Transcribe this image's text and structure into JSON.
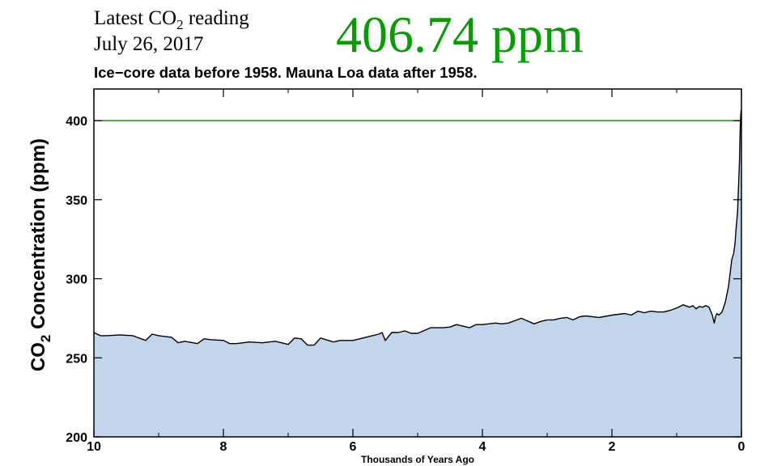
{
  "header": {
    "latest_prefix": "Latest CO",
    "latest_sub": "2",
    "latest_suffix": " reading",
    "date": "July 26, 2017",
    "reading": "406.74 ppm",
    "subtitle": "Ice−core data before 1958. Mauna Loa data after 1958."
  },
  "colors": {
    "reading": "#0a9a0a",
    "fill": "#c3d5ea",
    "line": "#000000",
    "reference_line": "#0a9a0a"
  },
  "chart_data": {
    "type": "area",
    "title": "",
    "xlabel": "Thousands of Years Ago",
    "ylabel_prefix": "CO",
    "ylabel_sub": "2",
    "ylabel_suffix": " Concentration (ppm)",
    "xlim": [
      10,
      0
    ],
    "ylim": [
      200,
      420
    ],
    "x_ticks": [
      10,
      8,
      6,
      4,
      2,
      0
    ],
    "y_ticks": [
      200,
      250,
      300,
      350,
      400
    ],
    "reference_line": 400,
    "grid": false,
    "series": [
      {
        "x": [
          10,
          9.9,
          9.8,
          9.6,
          9.4,
          9.2,
          9.1,
          9.0,
          8.8,
          8.7,
          8.6,
          8.4,
          8.3,
          8.2,
          8.0,
          7.9,
          7.8,
          7.6,
          7.4,
          7.2,
          7.0,
          6.9,
          6.8,
          6.7,
          6.6,
          6.5,
          6.3,
          6.2,
          6.0,
          5.8,
          5.6,
          5.55,
          5.5,
          5.4,
          5.3,
          5.2,
          5.1,
          5.0,
          4.8,
          4.6,
          4.5,
          4.4,
          4.2,
          4.1,
          4.0,
          3.8,
          3.7,
          3.6,
          3.4,
          3.2,
          3.1,
          3.0,
          2.9,
          2.8,
          2.7,
          2.6,
          2.5,
          2.4,
          2.2,
          2.0,
          1.9,
          1.8,
          1.7,
          1.6,
          1.5,
          1.4,
          1.3,
          1.2,
          1.1,
          1.0,
          0.9,
          0.8,
          0.75,
          0.7,
          0.65,
          0.6,
          0.55,
          0.5,
          0.45,
          0.42,
          0.4,
          0.38,
          0.35,
          0.3,
          0.25,
          0.2,
          0.17,
          0.15,
          0.12,
          0.1,
          0.08,
          0.06,
          0.05,
          0.04,
          0.03,
          0.025,
          0.02,
          0.015,
          0.01,
          0.005
        ],
        "y": [
          266,
          264,
          264,
          264.5,
          264,
          261,
          265,
          264,
          263,
          259.5,
          260.5,
          259,
          262,
          261.5,
          261,
          259,
          259,
          260,
          259.5,
          260.5,
          258.5,
          262.5,
          262,
          258,
          258,
          262.5,
          260,
          261,
          261,
          263,
          265,
          266,
          261,
          266,
          266,
          267,
          265.5,
          265.5,
          269,
          269,
          269.5,
          271,
          269,
          271,
          271,
          272,
          271.5,
          272,
          275,
          271.5,
          273,
          274,
          274,
          275,
          275.5,
          274,
          276,
          276.5,
          275.5,
          277,
          277.5,
          278,
          277,
          279.5,
          278.5,
          279.5,
          279,
          279,
          280,
          281.5,
          283.5,
          282,
          283,
          281,
          282.5,
          282,
          283,
          282,
          277,
          272,
          276,
          278,
          277,
          279,
          285,
          295,
          305,
          312,
          316,
          322,
          333,
          342,
          353,
          363,
          375,
          385,
          393,
          400,
          404,
          406.74
        ]
      }
    ]
  }
}
